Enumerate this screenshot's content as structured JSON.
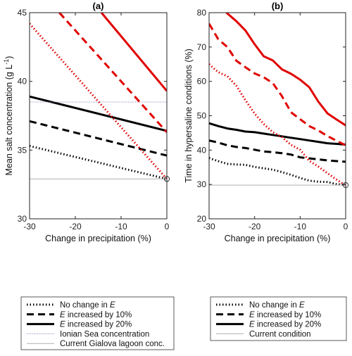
{
  "chart_data": [
    {
      "type": "line",
      "title": "(a)",
      "xlabel": "Change in precipitation (%)",
      "ylabel": "Mean salt concentration (g L",
      "ylabel_sup": "-1",
      "ylabel_close": ")",
      "xlim": [
        -30,
        0
      ],
      "ylim": [
        30,
        45
      ],
      "xticks": [
        -30,
        -20,
        -10,
        0
      ],
      "yticks": [
        30,
        35,
        40,
        45
      ],
      "grid": false,
      "legend_position": "below",
      "series": [
        {
          "name": "No change in E",
          "color": "#000000",
          "style": "dotted",
          "x": [
            -30,
            0
          ],
          "y": [
            35.3,
            32.9
          ]
        },
        {
          "name": "E increased by 10%",
          "color": "#000000",
          "style": "dashed",
          "x": [
            -30,
            0
          ],
          "y": [
            37.1,
            34.6
          ]
        },
        {
          "name": "E increased by 20%",
          "color": "#000000",
          "style": "solid",
          "x": [
            -30,
            0
          ],
          "y": [
            38.9,
            36.4
          ]
        },
        {
          "color": "#e00000",
          "style": "dotted",
          "x": [
            -30,
            0
          ],
          "y": [
            44.2,
            32.9
          ]
        },
        {
          "color": "#e00000",
          "style": "dashed",
          "x": [
            -23.5,
            0
          ],
          "y": [
            45,
            36.3
          ]
        },
        {
          "color": "#e00000",
          "style": "solid",
          "x": [
            -14.3,
            0
          ],
          "y": [
            45,
            39.3
          ]
        },
        {
          "name": "Ionian Sea concentration",
          "color": "#7a7ab8",
          "style": "thin-dotted",
          "x": [
            -30,
            0
          ],
          "y": [
            38.5,
            38.5
          ]
        },
        {
          "name": "Current Gialova lagoon conc.",
          "color": "#b0b0b0",
          "style": "thin",
          "x": [
            -30,
            0
          ],
          "y": [
            32.9,
            32.9
          ]
        }
      ],
      "marker": {
        "x": 0,
        "y": 32.9
      }
    },
    {
      "type": "line",
      "title": "(b)",
      "xlabel": "Change in precipitation (%)",
      "ylabel": "Time in hypersaline conditions (%)",
      "xlim": [
        -30,
        0
      ],
      "ylim": [
        20,
        80
      ],
      "xticks": [
        -30,
        -20,
        -10,
        0
      ],
      "yticks": [
        20,
        30,
        40,
        50,
        60,
        70,
        80
      ],
      "grid": false,
      "legend_position": "below",
      "series": [
        {
          "name": "No change in E",
          "color": "#000000",
          "style": "dotted",
          "x": [
            -30,
            -28,
            -26,
            -24,
            -22,
            -20,
            -18,
            -16,
            -14,
            -12,
            -10,
            -8,
            -6,
            -4,
            -2,
            0
          ],
          "y": [
            37.7,
            36.8,
            36,
            35.8,
            35.7,
            35.1,
            34.7,
            34.3,
            33.6,
            32.8,
            31.9,
            31.1,
            30.8,
            30.7,
            30.1,
            29.8
          ]
        },
        {
          "name": "E increased by 10%",
          "color": "#000000",
          "style": "dashed",
          "x": [
            -30,
            -28,
            -26,
            -24,
            -22,
            -20,
            -18,
            -16,
            -14,
            -12,
            -10,
            -8,
            -6,
            -4,
            -2,
            0
          ],
          "y": [
            42.8,
            42.2,
            41.4,
            40.9,
            40.6,
            40.1,
            39.6,
            39.4,
            39.1,
            38.7,
            37.9,
            37.6,
            37.3,
            37.0,
            36.8,
            36.6
          ]
        },
        {
          "name": "E increased by 20%",
          "color": "#000000",
          "style": "solid",
          "x": [
            -30,
            -28,
            -26,
            -24,
            -22,
            -20,
            -18,
            -16,
            -14,
            -12,
            -10,
            -8,
            -6,
            -4,
            -2,
            0
          ],
          "y": [
            47.8,
            47.0,
            46.3,
            45.9,
            45.4,
            45.2,
            44.8,
            44.4,
            44.0,
            43.6,
            43.2,
            42.8,
            42.4,
            42.0,
            41.8,
            41.6
          ]
        },
        {
          "color": "#e00000",
          "style": "dotted",
          "x": [
            -30,
            -28,
            -26,
            -24,
            -22,
            -20,
            -18,
            -16,
            -14,
            -12,
            -10,
            -8,
            -6,
            -4,
            -2,
            0
          ],
          "y": [
            65.0,
            62.7,
            61.5,
            58.7,
            54.5,
            50.6,
            47.6,
            45.2,
            43.8,
            41.5,
            40.1,
            36.9,
            35.2,
            33.3,
            31.4,
            29.7
          ]
        },
        {
          "color": "#e00000",
          "style": "dashed",
          "x": [
            -30,
            -28,
            -26,
            -24,
            -22,
            -20,
            -18,
            -16,
            -14,
            -12,
            -10,
            -8,
            -6,
            -4,
            -2,
            0
          ],
          "y": [
            76.8,
            72.3,
            70.0,
            66.0,
            64.1,
            62.3,
            61.2,
            59.5,
            55.7,
            51.0,
            49.0,
            47.0,
            45.7,
            44.1,
            42.7,
            41.4
          ]
        },
        {
          "color": "#e00000",
          "style": "solid",
          "x": [
            -26.2,
            -24,
            -22,
            -20,
            -18,
            -16,
            -14,
            -12,
            -10,
            -8,
            -6,
            -4,
            -2,
            0
          ],
          "y": [
            80,
            77.5,
            74.8,
            70.8,
            67.3,
            66.1,
            63.5,
            62.2,
            60.5,
            58.3,
            54.1,
            50.7,
            48.9,
            47.2
          ]
        },
        {
          "name": "Current condition",
          "color": "#b0b0b0",
          "style": "thin",
          "x": [
            -30,
            0
          ],
          "y": [
            29.8,
            29.8
          ]
        }
      ],
      "marker": {
        "x": 0,
        "y": 29.8
      }
    }
  ],
  "legends": [
    {
      "entries": [
        {
          "prefix": "No change in ",
          "italic": "E",
          "suffix": "",
          "style": "dotted",
          "color": "#000000"
        },
        {
          "prefix": "",
          "italic": "E",
          "suffix": " increased by 10%",
          "style": "dashed",
          "color": "#000000"
        },
        {
          "prefix": "",
          "italic": "E",
          "suffix": " increased by 20%",
          "style": "solid",
          "color": "#000000"
        },
        {
          "prefix": "Ionian Sea concentration",
          "italic": "",
          "suffix": "",
          "style": "thin-dotted",
          "color": "#7a7ab8"
        },
        {
          "prefix": "Current Gialova lagoon conc.",
          "italic": "",
          "suffix": "",
          "style": "thin",
          "color": "#b0b0b0"
        }
      ]
    },
    {
      "entries": [
        {
          "prefix": "No change in ",
          "italic": "E",
          "suffix": "",
          "style": "dotted",
          "color": "#000000"
        },
        {
          "prefix": "",
          "italic": "E",
          "suffix": " increased by 10%",
          "style": "dashed",
          "color": "#000000"
        },
        {
          "prefix": "",
          "italic": "E",
          "suffix": " increased by 20%",
          "style": "solid",
          "color": "#000000"
        },
        {
          "prefix": "Current condition",
          "italic": "",
          "suffix": "",
          "style": "thin",
          "color": "#b0b0b0"
        }
      ]
    }
  ]
}
